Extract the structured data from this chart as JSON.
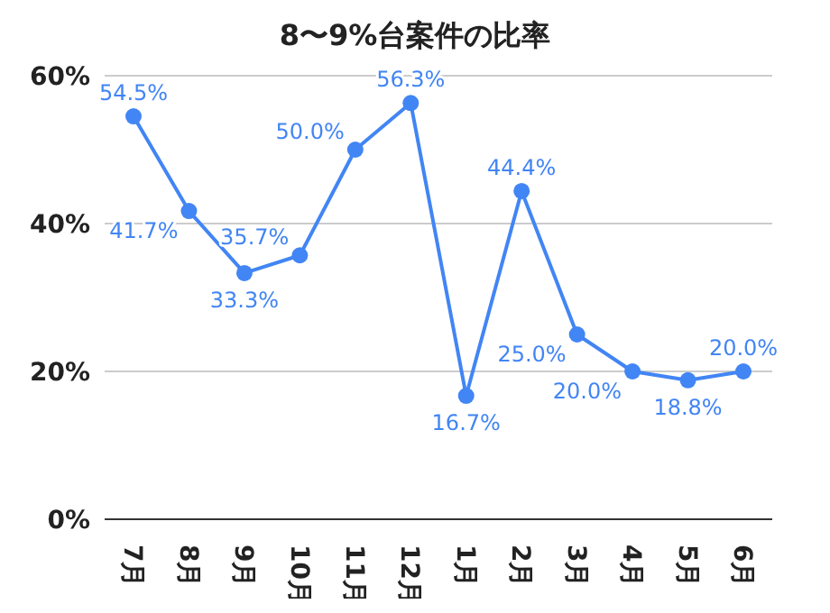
{
  "chart_data": {
    "type": "line",
    "title": "8〜9%台案件の比率",
    "categories": [
      "7月",
      "8月",
      "9月",
      "10月",
      "11月",
      "12月",
      "1月",
      "2月",
      "3月",
      "4月",
      "5月",
      "6月"
    ],
    "series": [
      {
        "color": "#4285f4",
        "values": [
          54.5,
          41.7,
          33.3,
          35.7,
          50.0,
          56.3,
          16.7,
          44.4,
          25.0,
          20.0,
          18.8,
          20.0
        ],
        "value_labels": [
          "54.5%",
          "41.7%",
          "33.3%",
          "35.7%",
          "50.0%",
          "56.3%",
          "16.7%",
          "44.4%",
          "25.0%",
          "20.0%",
          "18.8%",
          "20.0%"
        ]
      }
    ],
    "ylim": [
      0,
      60
    ],
    "yticks": [
      {
        "value": 0,
        "label": "0%"
      },
      {
        "value": 20,
        "label": "20%"
      },
      {
        "value": 40,
        "label": "40%"
      },
      {
        "value": 60,
        "label": "60%"
      }
    ],
    "grid": "y",
    "marker": "circle",
    "line_style": "solid",
    "legend": false
  }
}
